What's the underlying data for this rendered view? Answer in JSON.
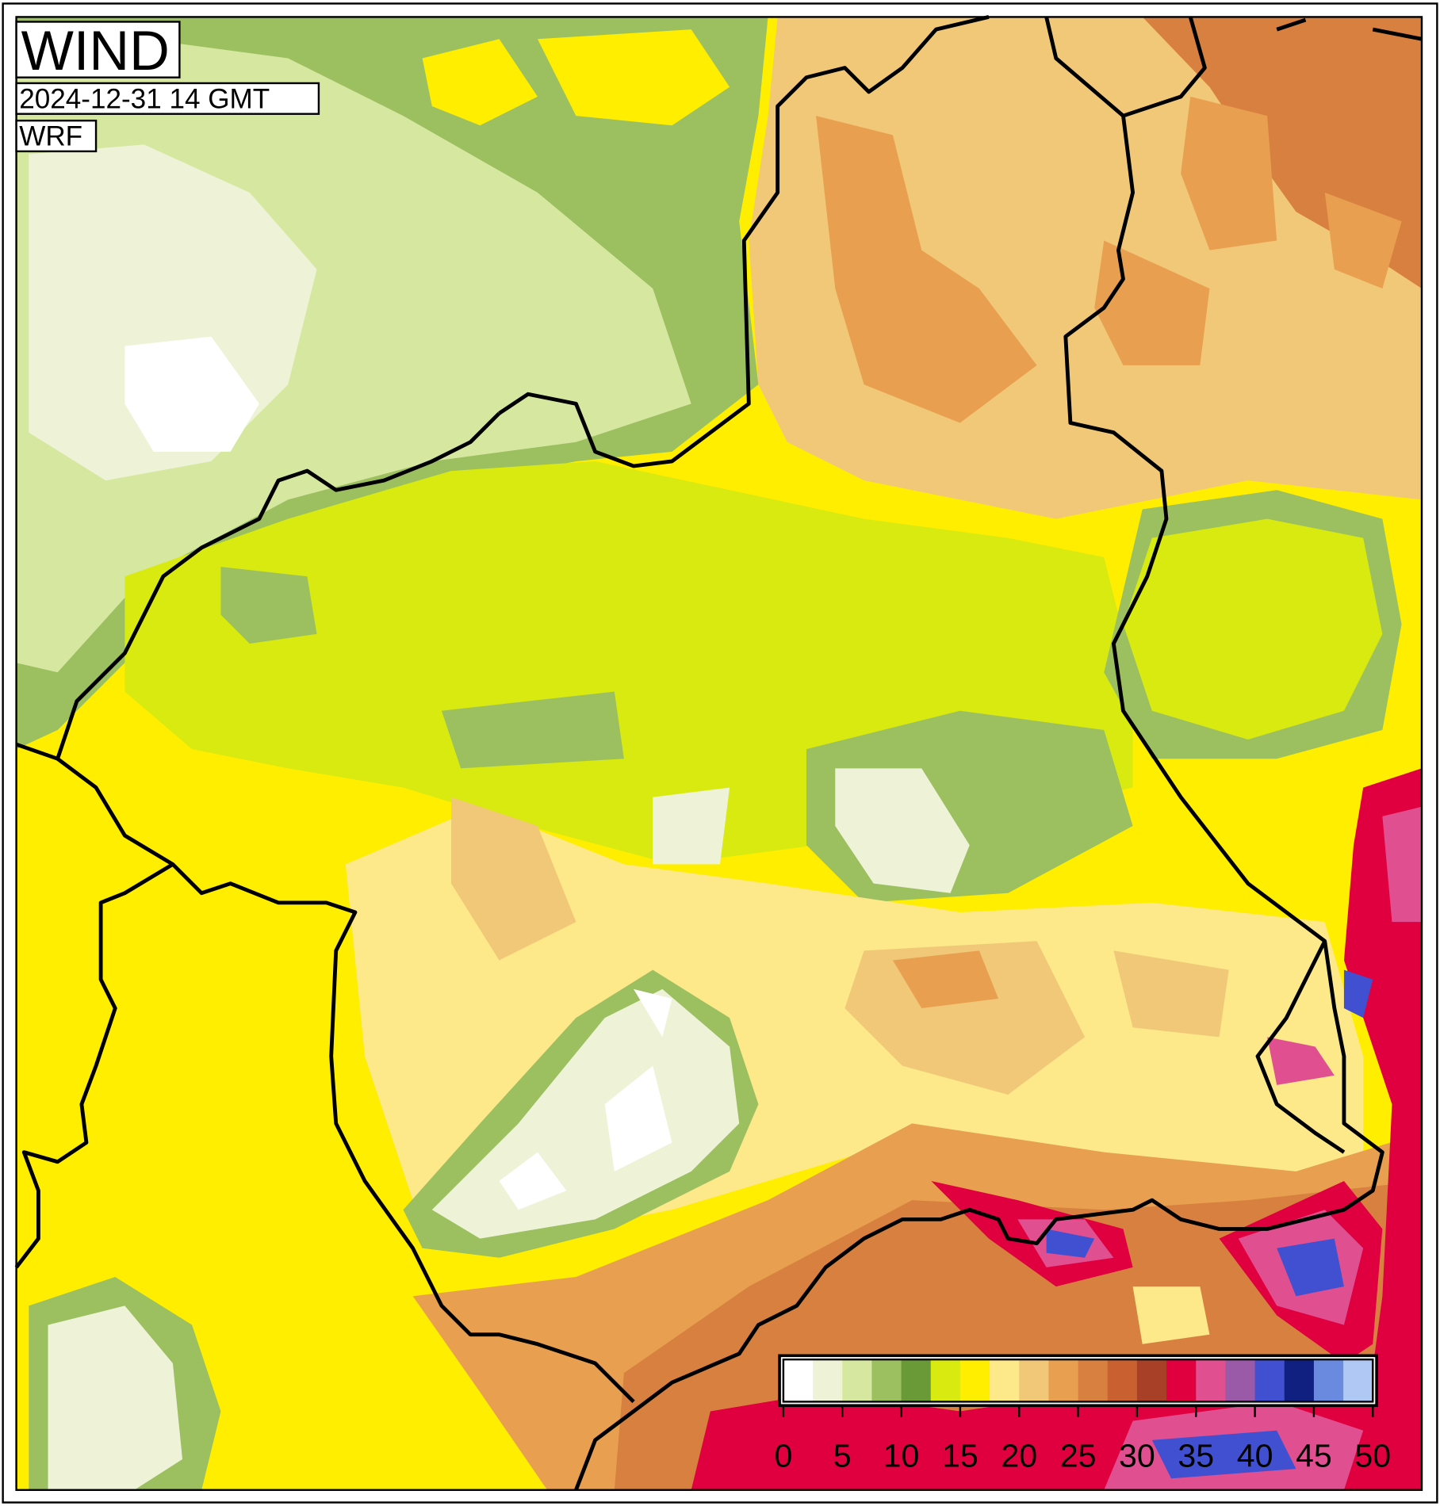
{
  "header": {
    "title": "WIND",
    "time": "2024-12-31 14 GMT",
    "model": "WRF"
  },
  "colorbar": {
    "lim": [
      0,
      50
    ],
    "ticks": [
      0,
      5,
      10,
      15,
      20,
      25,
      30,
      35,
      40,
      45,
      50
    ],
    "colors": [
      "#ffffff",
      "#eef3d8",
      "#d6e8a0",
      "#9cc060",
      "#6a9a38",
      "#d8ea10",
      "#ffee00",
      "#fde88a",
      "#f0c878",
      "#e8a050",
      "#d88040",
      "#c86030",
      "#a84028",
      "#e00040",
      "#e05090",
      "#9a5aa8",
      "#4050d0",
      "#102080",
      "#6a8ae0",
      "#b0c8f4"
    ]
  }
}
